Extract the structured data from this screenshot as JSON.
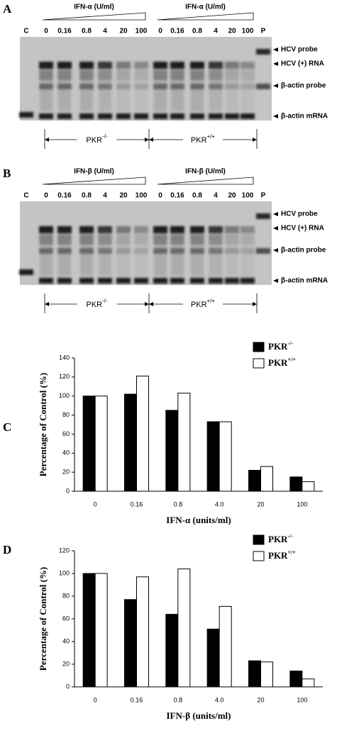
{
  "panels": [
    {
      "letter": "A",
      "treatment_label": "IFN-α (U/ml)",
      "lanes": [
        "C",
        "0",
        "0.16",
        "0.8",
        "4",
        "20",
        "100",
        "0",
        "0.16",
        "0.8",
        "4",
        "20",
        "100",
        "P"
      ],
      "bands": [
        "HCV probe",
        "HCV (+) RNA",
        "β-actin probe",
        "β-actin mRNA"
      ],
      "genotypes": [
        {
          "name": "PKR",
          "superscript": "-/-"
        },
        {
          "name": "PKR",
          "superscript": "+/+"
        }
      ]
    },
    {
      "letter": "B",
      "treatment_label": "IFN-β (U/ml)",
      "lanes": [
        "C",
        "0",
        "0.16",
        "0.8",
        "4",
        "20",
        "100",
        "0",
        "0.16",
        "0.8",
        "4",
        "20",
        "100",
        "P"
      ],
      "bands": [
        "HCV probe",
        "HCV (+) RNA",
        "β-actin probe",
        "β-actin mRNA"
      ],
      "genotypes": [
        {
          "name": "PKR",
          "superscript": "-/-"
        },
        {
          "name": "PKR",
          "superscript": "+/+"
        }
      ]
    }
  ],
  "chart_data": [
    {
      "type": "bar",
      "letter": "C",
      "x_label": "IFN-α (units/ml)",
      "y_label": "Percentage of Control (%)",
      "categories": [
        "0",
        "0.16",
        "0.8",
        "4.0",
        "20",
        "100"
      ],
      "series": [
        {
          "name": "PKR",
          "superscript": "-/-",
          "color": "#000000",
          "values": [
            100,
            102,
            85,
            73,
            22,
            15
          ]
        },
        {
          "name": "PKR",
          "superscript": "+/+",
          "color": "#ffffff",
          "values": [
            100,
            121,
            103,
            73,
            26,
            10
          ]
        }
      ],
      "ylim": [
        0,
        140
      ],
      "yticks": [
        0,
        20,
        40,
        60,
        80,
        100,
        120,
        140
      ],
      "legend": "upper right"
    },
    {
      "type": "bar",
      "letter": "D",
      "x_label": "IFN-β (units/ml)",
      "y_label": "Percentage of Control (%)",
      "categories": [
        "0",
        "0.16",
        "0.8",
        "4.0",
        "20",
        "100"
      ],
      "series": [
        {
          "name": "PKR",
          "superscript": "-/-",
          "color": "#000000",
          "values": [
            100,
            77,
            64,
            51,
            23,
            14
          ]
        },
        {
          "name": "PKR",
          "superscript": "+/+",
          "color": "#ffffff",
          "values": [
            100,
            97,
            104,
            71,
            22,
            7
          ]
        }
      ],
      "ylim": [
        0,
        120
      ],
      "yticks": [
        0,
        20,
        40,
        60,
        80,
        100,
        120
      ],
      "legend": "upper right"
    }
  ]
}
